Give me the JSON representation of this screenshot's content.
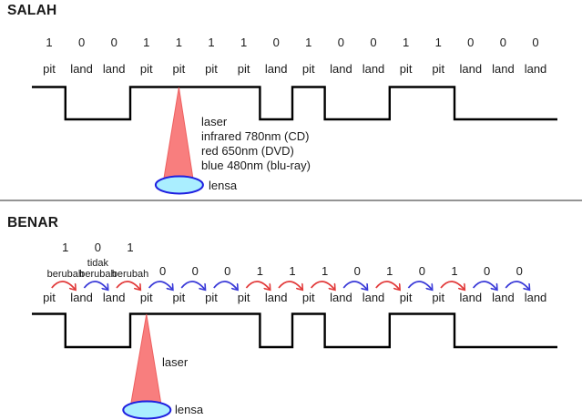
{
  "colors": {
    "text": "#1a1a1a",
    "wave": "#000000",
    "divider": "#949494",
    "laser_fill": "#f87e7e",
    "laser_stroke": "#ee5f5f",
    "lens_fill": "#aaeeff",
    "lens_stroke": "#1f1fe0",
    "arrow_red": "#e23b3b",
    "arrow_blue": "#3a3ad8"
  },
  "salah": {
    "title": "SALAH",
    "bits": [
      "1",
      "0",
      "0",
      "1",
      "1",
      "1",
      "1",
      "0",
      "1",
      "0",
      "0",
      "1",
      "1",
      "0",
      "0",
      "0"
    ],
    "labels": [
      "pit",
      "land",
      "land",
      "pit",
      "pit",
      "pit",
      "pit",
      "land",
      "pit",
      "land",
      "land",
      "pit",
      "pit",
      "land",
      "land",
      "land"
    ],
    "laser_points_to_column_index": 4,
    "laser_label_lines": [
      "laser",
      "infrared 780nm (CD)",
      "red 650nm (DVD)",
      "blue 480nm (blu-ray)"
    ],
    "lens_label": "lensa"
  },
  "benar": {
    "title": "BENAR",
    "labels": [
      "pit",
      "land",
      "land",
      "pit",
      "pit",
      "pit",
      "pit",
      "land",
      "pit",
      "land",
      "land",
      "pit",
      "pit",
      "land",
      "land",
      "land"
    ],
    "transition_bits": [
      "1",
      "0",
      "1",
      "0",
      "0",
      "0",
      "1",
      "1",
      "1",
      "0",
      "1",
      "0",
      "1",
      "0",
      "0"
    ],
    "change_labels": [
      [
        "berubah"
      ],
      [
        "tidak",
        "berubah"
      ],
      [
        "berubah"
      ]
    ],
    "laser_points_to_column_index": 3,
    "laser_label": "laser",
    "lens_label": "lensa"
  }
}
